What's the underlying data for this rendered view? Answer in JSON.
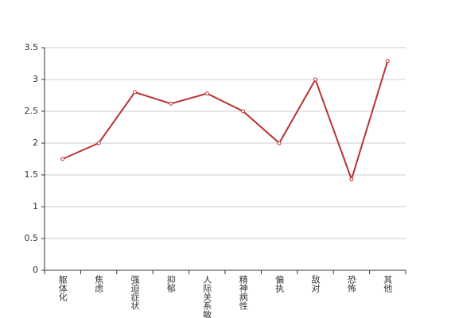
{
  "chart_data": {
    "type": "line",
    "categories": [
      "躯体化",
      "焦虑",
      "强迫症状",
      "抑郁",
      "人际关系敏感",
      "精神病性",
      "偏执",
      "敌对",
      "恐怖",
      "其他"
    ],
    "series": [
      {
        "color": "#b83232",
        "values": [
          1.75,
          2.0,
          2.8,
          2.62,
          2.78,
          2.5,
          2.0,
          3.0,
          1.43,
          3.29
        ]
      }
    ],
    "ylim": [
      0,
      3.5
    ],
    "yticks": [
      0,
      0.5,
      1,
      1.5,
      2,
      2.5,
      3,
      3.5
    ],
    "grid": true
  }
}
